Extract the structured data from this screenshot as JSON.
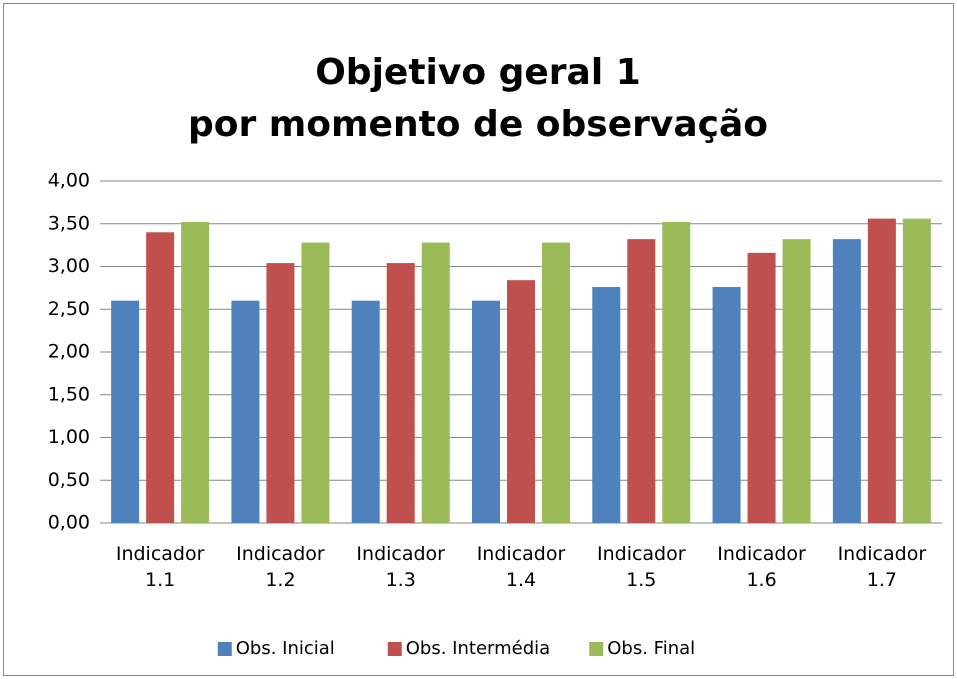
{
  "chart_data": {
    "type": "bar",
    "title": [
      "Objetivo geral 1",
      "por momento de observação"
    ],
    "categories": [
      "Indicador 1.1",
      "Indicador 1.2",
      "Indicador 1.3",
      "Indicador 1.4",
      "Indicador 1.5",
      "Indicador 1.6",
      "Indicador 1.7"
    ],
    "series": [
      {
        "name": "Obs. Inicial",
        "color": "#4f81bd",
        "values": [
          2.6,
          2.6,
          2.6,
          2.6,
          2.76,
          2.76,
          3.32
        ]
      },
      {
        "name": "Obs. Intermédia",
        "color": "#c0504d",
        "values": [
          3.4,
          3.04,
          3.04,
          2.84,
          3.32,
          3.16,
          3.56
        ]
      },
      {
        "name": "Obs. Final",
        "color": "#9bbb59",
        "values": [
          3.52,
          3.28,
          3.28,
          3.28,
          3.52,
          3.32,
          3.56
        ]
      }
    ],
    "ylim": [
      0,
      4
    ],
    "yticks": [
      {
        "value": 0,
        "label": "0,00"
      },
      {
        "value": 0.5,
        "label": "0,50"
      },
      {
        "value": 1,
        "label": "1,00"
      },
      {
        "value": 1.5,
        "label": "1,50"
      },
      {
        "value": 2,
        "label": "2,00"
      },
      {
        "value": 2.5,
        "label": "2,50"
      },
      {
        "value": 3,
        "label": "3,00"
      },
      {
        "value": 3.5,
        "label": "3,50"
      },
      {
        "value": 4,
        "label": "4,00"
      }
    ],
    "grid": true,
    "legend": "bottom"
  }
}
